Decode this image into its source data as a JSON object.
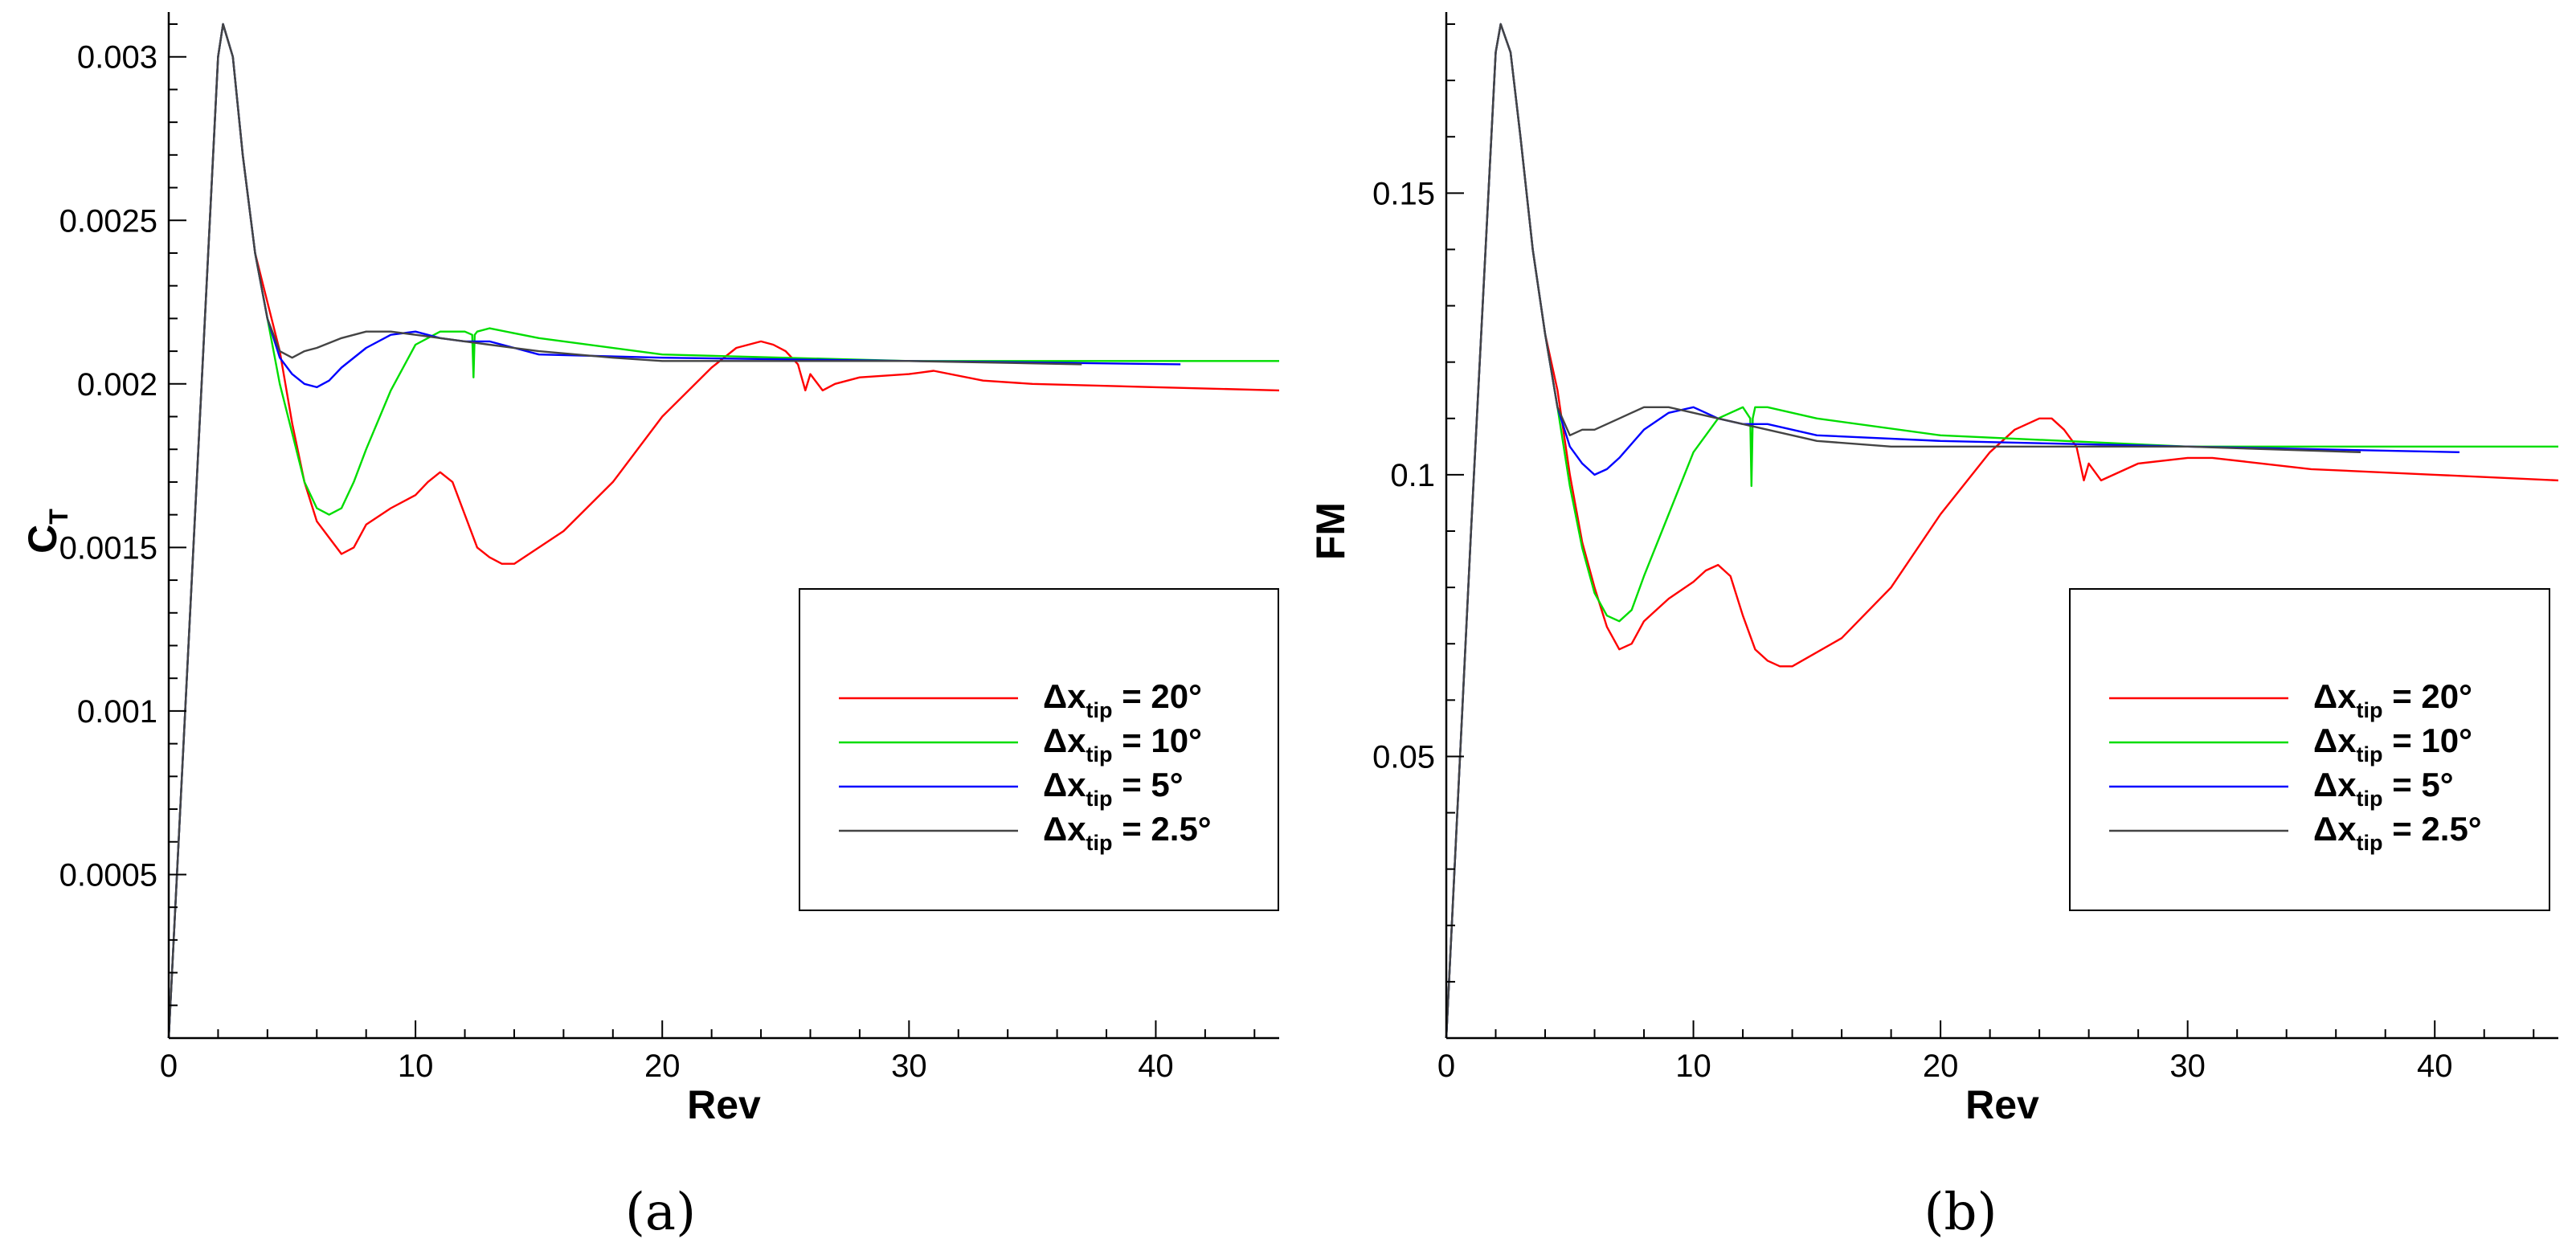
{
  "chart_data": [
    {
      "type": "line",
      "panel_label": "(a)",
      "xlabel": "Rev",
      "ylabel_main": "C",
      "ylabel_sub": "T",
      "xlim": [
        0,
        45
      ],
      "ylim": [
        0,
        0.0031
      ],
      "xticks": [
        0,
        10,
        20,
        30,
        40
      ],
      "xtick_labels": [
        "0",
        "10",
        "20",
        "30",
        "40"
      ],
      "yticks": [
        0.0005,
        0.001,
        0.0015,
        0.002,
        0.0025,
        0.003
      ],
      "ytick_labels": [
        "0.0005",
        "0.001",
        "0.0015",
        "0.002",
        "0.0025",
        "0.003"
      ],
      "legend_position": "bottom-right",
      "series": [
        {
          "name": "Δx tip = 20°",
          "label_main": "Δx",
          "label_sub": "tip",
          "label_value": " = 20°",
          "color": "#ff0000",
          "x": [
            0,
            1,
            2,
            2.2,
            2.6,
            3,
            3.5,
            4,
            4.5,
            5,
            5.5,
            6,
            6.5,
            7,
            7.5,
            8,
            9,
            10,
            10.5,
            11,
            11.5,
            12,
            12.5,
            13,
            13.5,
            14,
            16,
            18,
            20,
            22,
            23,
            24,
            24.5,
            25,
            25.5,
            25.8,
            26,
            26.5,
            27,
            28,
            30,
            31,
            33,
            35,
            40,
            45
          ],
          "y": [
            0,
            0.0015,
            0.003,
            0.0031,
            0.003,
            0.0027,
            0.0024,
            0.00225,
            0.0021,
            0.00188,
            0.0017,
            0.00158,
            0.00153,
            0.00148,
            0.0015,
            0.00157,
            0.00162,
            0.00166,
            0.0017,
            0.00173,
            0.0017,
            0.0016,
            0.0015,
            0.00147,
            0.00145,
            0.00145,
            0.00155,
            0.0017,
            0.0019,
            0.00205,
            0.00211,
            0.00213,
            0.00212,
            0.0021,
            0.00206,
            0.00198,
            0.00203,
            0.00198,
            0.002,
            0.00202,
            0.00203,
            0.00204,
            0.00201,
            0.002,
            0.00199,
            0.00198
          ]
        },
        {
          "name": "Δx tip = 10°",
          "label_main": "Δx",
          "label_sub": "tip",
          "label_value": " = 10°",
          "color": "#00dd00",
          "x": [
            0,
            1,
            2,
            2.2,
            2.6,
            3,
            3.5,
            4,
            4.5,
            5,
            5.5,
            6,
            6.5,
            7,
            7.5,
            8,
            9,
            10,
            11,
            12,
            12.3,
            12.35,
            12.4,
            12.5,
            13,
            15,
            20,
            30,
            40,
            45
          ],
          "y": [
            0,
            0.0015,
            0.003,
            0.0031,
            0.003,
            0.0027,
            0.0024,
            0.0022,
            0.002,
            0.00185,
            0.0017,
            0.00162,
            0.0016,
            0.00162,
            0.0017,
            0.0018,
            0.00198,
            0.00212,
            0.00216,
            0.00216,
            0.00215,
            0.00202,
            0.00215,
            0.00216,
            0.00217,
            0.00214,
            0.00209,
            0.00207,
            0.00207,
            0.00207
          ]
        },
        {
          "name": "Δx tip = 5°",
          "label_main": "Δx",
          "label_sub": "tip",
          "label_value": " = 5°",
          "color": "#0000ff",
          "x": [
            0,
            1,
            2,
            2.2,
            2.6,
            3,
            3.5,
            4,
            4.5,
            5,
            5.5,
            6,
            6.5,
            7,
            8,
            9,
            10,
            11,
            12,
            13,
            14,
            15,
            20,
            30,
            41
          ],
          "y": [
            0,
            0.0015,
            0.003,
            0.0031,
            0.003,
            0.0027,
            0.0024,
            0.0022,
            0.00208,
            0.00203,
            0.002,
            0.00199,
            0.00201,
            0.00205,
            0.00211,
            0.00215,
            0.00216,
            0.00214,
            0.00213,
            0.00213,
            0.00211,
            0.00209,
            0.00208,
            0.00207,
            0.00206
          ]
        },
        {
          "name": "Δx tip = 2.5°",
          "label_main": "Δx",
          "label_sub": "tip",
          "label_value": " = 2.5°",
          "color": "#444444",
          "x": [
            0,
            1,
            2,
            2.2,
            2.6,
            3,
            3.5,
            4,
            4.5,
            5,
            5.5,
            6,
            7,
            8,
            9,
            10,
            11,
            12,
            13,
            15,
            18,
            20,
            25,
            30,
            37
          ],
          "y": [
            0,
            0.0015,
            0.003,
            0.0031,
            0.003,
            0.0027,
            0.0024,
            0.0022,
            0.0021,
            0.00208,
            0.0021,
            0.00211,
            0.00214,
            0.00216,
            0.00216,
            0.00215,
            0.00214,
            0.00213,
            0.00212,
            0.0021,
            0.00208,
            0.00207,
            0.00207,
            0.00207,
            0.00206
          ]
        }
      ]
    },
    {
      "type": "line",
      "panel_label": "(b)",
      "xlabel": "Rev",
      "ylabel_main": "FM",
      "ylabel_sub": "",
      "xlim": [
        0,
        45
      ],
      "ylim": [
        0,
        0.18
      ],
      "xticks": [
        0,
        10,
        20,
        30,
        40
      ],
      "xtick_labels": [
        "0",
        "10",
        "20",
        "30",
        "40"
      ],
      "yticks": [
        0.05,
        0.1,
        0.15
      ],
      "ytick_labels": [
        "0.05",
        "0.1",
        "0.15"
      ],
      "legend_position": "bottom-right",
      "series": [
        {
          "name": "Δx tip = 20°",
          "label_main": "Δx",
          "label_sub": "tip",
          "label_value": " = 20°",
          "color": "#ff0000",
          "x": [
            0,
            1,
            2,
            2.2,
            2.6,
            3,
            3.5,
            4,
            4.5,
            5,
            5.5,
            6,
            6.5,
            7,
            7.5,
            8,
            9,
            10,
            10.5,
            11,
            11.5,
            12,
            12.5,
            13,
            13.5,
            14,
            16,
            18,
            20,
            22,
            23,
            24,
            24.5,
            25,
            25.5,
            25.8,
            26,
            26.5,
            27,
            28,
            30,
            31,
            33,
            35,
            40,
            45
          ],
          "y": [
            0,
            0.09,
            0.175,
            0.18,
            0.175,
            0.16,
            0.14,
            0.125,
            0.115,
            0.1,
            0.088,
            0.08,
            0.073,
            0.069,
            0.07,
            0.074,
            0.078,
            0.081,
            0.083,
            0.084,
            0.082,
            0.075,
            0.069,
            0.067,
            0.066,
            0.066,
            0.071,
            0.08,
            0.093,
            0.104,
            0.108,
            0.11,
            0.11,
            0.108,
            0.105,
            0.099,
            0.102,
            0.099,
            0.1,
            0.102,
            0.103,
            0.103,
            0.102,
            0.101,
            0.1,
            0.099
          ]
        },
        {
          "name": "Δx tip = 10°",
          "label_main": "Δx",
          "label_sub": "tip",
          "label_value": " = 10°",
          "color": "#00dd00",
          "x": [
            0,
            1,
            2,
            2.2,
            2.6,
            3,
            3.5,
            4,
            4.5,
            5,
            5.5,
            6,
            6.5,
            7,
            7.5,
            8,
            9,
            10,
            11,
            12,
            12.3,
            12.35,
            12.4,
            12.5,
            13,
            15,
            20,
            30,
            40,
            45
          ],
          "y": [
            0,
            0.09,
            0.175,
            0.18,
            0.175,
            0.16,
            0.14,
            0.125,
            0.112,
            0.098,
            0.087,
            0.079,
            0.075,
            0.074,
            0.076,
            0.082,
            0.093,
            0.104,
            0.11,
            0.112,
            0.11,
            0.098,
            0.11,
            0.112,
            0.112,
            0.11,
            0.107,
            0.105,
            0.105,
            0.105
          ]
        },
        {
          "name": "Δx tip = 5°",
          "label_main": "Δx",
          "label_sub": "tip",
          "label_value": " = 5°",
          "color": "#0000ff",
          "x": [
            0,
            1,
            2,
            2.2,
            2.6,
            3,
            3.5,
            4,
            4.5,
            5,
            5.5,
            6,
            6.5,
            7,
            8,
            9,
            10,
            11,
            12,
            13,
            14,
            15,
            20,
            30,
            41
          ],
          "y": [
            0,
            0.09,
            0.175,
            0.18,
            0.175,
            0.16,
            0.14,
            0.125,
            0.112,
            0.105,
            0.102,
            0.1,
            0.101,
            0.103,
            0.108,
            0.111,
            0.112,
            0.11,
            0.109,
            0.109,
            0.108,
            0.107,
            0.106,
            0.105,
            0.104
          ]
        },
        {
          "name": "Δx tip = 2.5°",
          "label_main": "Δx",
          "label_sub": "tip",
          "label_value": " = 2.5°",
          "color": "#444444",
          "x": [
            0,
            1,
            2,
            2.2,
            2.6,
            3,
            3.5,
            4,
            4.5,
            5,
            5.5,
            6,
            7,
            8,
            9,
            10,
            11,
            12,
            13,
            15,
            18,
            20,
            25,
            30,
            37
          ],
          "y": [
            0,
            0.09,
            0.175,
            0.18,
            0.175,
            0.16,
            0.14,
            0.125,
            0.112,
            0.107,
            0.108,
            0.108,
            0.11,
            0.112,
            0.112,
            0.111,
            0.11,
            0.109,
            0.108,
            0.106,
            0.105,
            0.105,
            0.105,
            0.105,
            0.104
          ]
        }
      ]
    }
  ]
}
